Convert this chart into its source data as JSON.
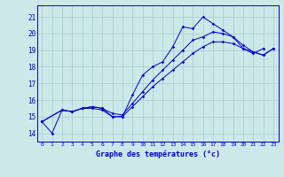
{
  "xlabel": "Graphe des températures (°c)",
  "bg_color": "#cce8e8",
  "grid_color": "#aacccc",
  "line_color": "#0000cc",
  "ylim": [
    13.5,
    21.7
  ],
  "xlim": [
    -0.5,
    23.5
  ],
  "yticks": [
    14,
    15,
    16,
    17,
    18,
    19,
    20,
    21
  ],
  "xticks": [
    0,
    1,
    2,
    3,
    4,
    5,
    6,
    7,
    8,
    9,
    10,
    11,
    12,
    13,
    14,
    15,
    16,
    17,
    18,
    19,
    20,
    21,
    22,
    23
  ],
  "line_a_x": [
    0,
    1,
    2,
    3,
    4,
    5,
    6,
    7,
    8,
    9,
    10,
    11,
    12,
    13,
    14,
    15,
    16,
    17,
    18,
    19,
    20,
    21,
    22
  ],
  "line_a_y": [
    14.7,
    14.0,
    15.4,
    15.3,
    15.5,
    15.6,
    15.5,
    15.0,
    15.0,
    16.3,
    17.5,
    18.0,
    18.3,
    19.2,
    20.4,
    20.3,
    21.0,
    20.6,
    20.2,
    19.8,
    19.1,
    18.8,
    19.1
  ],
  "line_b_x": [
    0,
    2,
    3,
    4,
    5,
    6,
    7,
    8,
    9,
    10,
    11,
    12,
    13,
    14,
    15,
    16,
    17,
    18,
    19,
    20,
    21,
    22,
    23
  ],
  "line_b_y": [
    14.7,
    15.4,
    15.3,
    15.5,
    15.6,
    15.5,
    15.2,
    15.1,
    15.8,
    16.5,
    17.2,
    17.8,
    18.4,
    19.0,
    19.6,
    19.8,
    20.1,
    20.0,
    19.8,
    19.3,
    18.9,
    18.7,
    19.1
  ],
  "line_c_x": [
    0,
    2,
    3,
    4,
    5,
    6,
    7,
    8,
    9,
    10,
    11,
    12,
    13,
    14,
    15,
    16,
    17,
    18,
    19,
    20,
    21,
    22,
    23
  ],
  "line_c_y": [
    14.7,
    15.4,
    15.3,
    15.5,
    15.5,
    15.4,
    15.0,
    15.0,
    15.6,
    16.2,
    16.8,
    17.3,
    17.8,
    18.3,
    18.8,
    19.2,
    19.5,
    19.5,
    19.4,
    19.1,
    18.9,
    18.7,
    19.1
  ],
  "figsize": [
    3.2,
    2.0
  ],
  "dpi": 100
}
